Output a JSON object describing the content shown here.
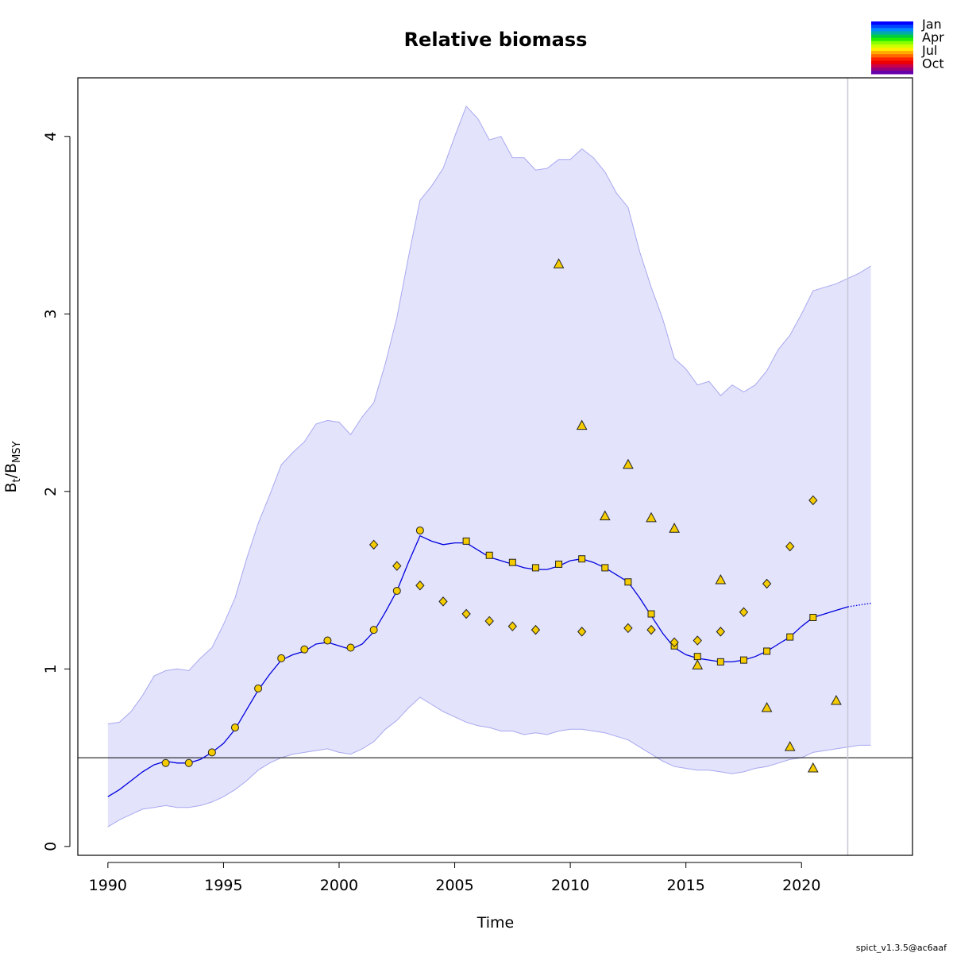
{
  "chart_data": {
    "type": "line",
    "title": "Relative biomass",
    "xlabel": "Time",
    "ylabel_main": "B",
    "ylabel_sub1": "t",
    "ylabel_sep": "/B",
    "ylabel_sub2": "MSY",
    "xlim": [
      1988.7,
      2024.8
    ],
    "ylim": [
      -0.05,
      4.33
    ],
    "x_ticks": [
      1990,
      1995,
      2000,
      2005,
      2010,
      2015,
      2020
    ],
    "y_ticks": [
      0,
      1,
      2,
      3,
      4
    ],
    "reference_line_y": 0.5,
    "vertical_line_x": 2022,
    "legend": {
      "placement": "top-right",
      "labels": [
        "Jan",
        "Apr",
        "Jul",
        "Oct"
      ],
      "colors": [
        "#0000ff",
        "#0044ff",
        "#0088ff",
        "#00aaaa",
        "#00cc44",
        "#22ee00",
        "#88ff00",
        "#ccff00",
        "#ffee00",
        "#ffaa00",
        "#ff6600",
        "#ff2200",
        "#ee0000",
        "#cc0044",
        "#990077",
        "#6600aa"
      ]
    },
    "colors": {
      "band": "#e3e3fc",
      "band_edge": "#a8a8f0",
      "line": "#0000dd",
      "point_fill": "#f5cc00",
      "point_stroke": "#222222",
      "reference": "#000000",
      "vline": "#c8c8d6"
    },
    "series": [
      {
        "kind": "band-upper",
        "x": [
          1990,
          1990.5,
          1991,
          1991.5,
          1992,
          1992.5,
          1993,
          1993.5,
          1994,
          1994.5,
          1995,
          1995.5,
          1996,
          1996.5,
          1997,
          1997.5,
          1998,
          1998.5,
          1999,
          1999.5,
          2000,
          2000.5,
          2001,
          2001.5,
          2002,
          2002.5,
          2003,
          2003.5,
          2004,
          2004.5,
          2005,
          2005.5,
          2006,
          2006.5,
          2007,
          2007.5,
          2008,
          2008.5,
          2009,
          2009.5,
          2010,
          2010.5,
          2011,
          2011.5,
          2012,
          2012.5,
          2013,
          2013.5,
          2014,
          2014.5,
          2015,
          2015.5,
          2016,
          2016.5,
          2017,
          2017.5,
          2018,
          2018.5,
          2019,
          2019.5,
          2020,
          2020.5,
          2021,
          2021.5,
          2022,
          2022.5,
          2023
        ],
        "values": [
          0.69,
          0.7,
          0.76,
          0.85,
          0.96,
          0.99,
          1.0,
          0.99,
          1.06,
          1.12,
          1.25,
          1.4,
          1.62,
          1.82,
          1.98,
          2.15,
          2.22,
          2.28,
          2.38,
          2.4,
          2.39,
          2.32,
          2.42,
          2.5,
          2.72,
          2.98,
          3.32,
          3.64,
          3.72,
          3.82,
          4.0,
          4.17,
          4.1,
          3.98,
          4.0,
          3.88,
          3.88,
          3.81,
          3.82,
          3.87,
          3.87,
          3.93,
          3.88,
          3.8,
          3.68,
          3.6,
          3.35,
          3.15,
          2.97,
          2.75,
          2.69,
          2.6,
          2.62,
          2.54,
          2.6,
          2.56,
          2.6,
          2.68,
          2.8,
          2.88,
          3.0,
          3.13,
          3.15,
          3.17,
          3.2,
          3.23,
          3.27
        ]
      },
      {
        "kind": "band-lower",
        "x": [
          1990,
          1990.5,
          1991,
          1991.5,
          1992,
          1992.5,
          1993,
          1993.5,
          1994,
          1994.5,
          1995,
          1995.5,
          1996,
          1996.5,
          1997,
          1997.5,
          1998,
          1998.5,
          1999,
          1999.5,
          2000,
          2000.5,
          2001,
          2001.5,
          2002,
          2002.5,
          2003,
          2003.5,
          2004,
          2004.5,
          2005,
          2005.5,
          2006,
          2006.5,
          2007,
          2007.5,
          2008,
          2008.5,
          2009,
          2009.5,
          2010,
          2010.5,
          2011,
          2011.5,
          2012,
          2012.5,
          2013,
          2013.5,
          2014,
          2014.5,
          2015,
          2015.5,
          2016,
          2016.5,
          2017,
          2017.5,
          2018,
          2018.5,
          2019,
          2019.5,
          2020,
          2020.5,
          2021,
          2021.5,
          2022,
          2022.5,
          2023
        ],
        "values": [
          0.11,
          0.15,
          0.18,
          0.21,
          0.22,
          0.23,
          0.22,
          0.22,
          0.23,
          0.25,
          0.28,
          0.32,
          0.37,
          0.43,
          0.47,
          0.5,
          0.52,
          0.53,
          0.54,
          0.55,
          0.53,
          0.52,
          0.55,
          0.59,
          0.66,
          0.71,
          0.78,
          0.84,
          0.8,
          0.76,
          0.73,
          0.7,
          0.68,
          0.67,
          0.65,
          0.65,
          0.63,
          0.64,
          0.63,
          0.65,
          0.66,
          0.66,
          0.65,
          0.64,
          0.62,
          0.6,
          0.56,
          0.52,
          0.48,
          0.45,
          0.44,
          0.43,
          0.43,
          0.42,
          0.41,
          0.42,
          0.44,
          0.45,
          0.47,
          0.49,
          0.5,
          0.53,
          0.54,
          0.55,
          0.56,
          0.57,
          0.57
        ]
      },
      {
        "kind": "estimate",
        "x": [
          1990,
          1990.5,
          1991,
          1991.5,
          1992,
          1992.5,
          1993,
          1993.5,
          1994,
          1994.5,
          1995,
          1995.5,
          1996,
          1996.5,
          1997,
          1997.5,
          1998,
          1998.5,
          1999,
          1999.5,
          2000,
          2000.5,
          2001,
          2001.5,
          2002,
          2002.5,
          2003,
          2003.5,
          2004,
          2004.5,
          2005,
          2005.5,
          2006,
          2006.5,
          2007,
          2007.5,
          2008,
          2008.5,
          2009,
          2009.5,
          2010,
          2010.5,
          2011,
          2011.5,
          2012,
          2012.5,
          2013,
          2013.5,
          2014,
          2014.5,
          2015,
          2015.5,
          2016,
          2016.5,
          2017,
          2017.5,
          2018,
          2018.5,
          2019,
          2019.5,
          2020,
          2020.5,
          2021,
          2021.5,
          2022
        ],
        "values": [
          0.28,
          0.32,
          0.37,
          0.42,
          0.46,
          0.48,
          0.47,
          0.47,
          0.49,
          0.53,
          0.58,
          0.66,
          0.77,
          0.88,
          0.97,
          1.05,
          1.08,
          1.1,
          1.14,
          1.15,
          1.13,
          1.11,
          1.14,
          1.21,
          1.32,
          1.44,
          1.6,
          1.75,
          1.72,
          1.7,
          1.71,
          1.71,
          1.67,
          1.63,
          1.61,
          1.59,
          1.57,
          1.56,
          1.56,
          1.58,
          1.61,
          1.62,
          1.6,
          1.57,
          1.53,
          1.49,
          1.4,
          1.3,
          1.2,
          1.12,
          1.08,
          1.06,
          1.05,
          1.04,
          1.04,
          1.05,
          1.07,
          1.1,
          1.14,
          1.18,
          1.24,
          1.29,
          1.31,
          1.33,
          1.35
        ]
      },
      {
        "kind": "forecast",
        "x": [
          2022,
          2022.5,
          2023
        ],
        "values": [
          1.35,
          1.36,
          1.37
        ]
      },
      {
        "kind": "index",
        "marker": "circle",
        "x": [
          1992.5,
          1993.5,
          1994.5,
          1995.5,
          1996.5,
          1997.5,
          1998.5,
          1999.5,
          2000.5,
          2001.5,
          2002.5,
          2003.5
        ],
        "values": [
          0.47,
          0.47,
          0.53,
          0.67,
          0.89,
          1.06,
          1.11,
          1.16,
          1.12,
          1.22,
          1.44,
          1.78
        ]
      },
      {
        "kind": "index",
        "marker": "square",
        "x": [
          2005.5,
          2006.5,
          2007.5,
          2008.5,
          2009.5,
          2010.5,
          2011.5,
          2012.5,
          2013.5,
          2014.5,
          2015.5,
          2016.5,
          2017.5,
          2018.5,
          2019.5,
          2020.5
        ],
        "values": [
          1.72,
          1.64,
          1.6,
          1.57,
          1.59,
          1.62,
          1.57,
          1.49,
          1.31,
          1.13,
          1.07,
          1.04,
          1.05,
          1.1,
          1.18,
          1.29
        ]
      },
      {
        "kind": "index",
        "marker": "diamond",
        "x": [
          2001.5,
          2002.5,
          2003.5,
          2004.5,
          2005.5,
          2006.5,
          2007.5,
          2008.5,
          2010.5,
          2012.5,
          2013.5,
          2014.5,
          2015.5,
          2016.5,
          2017.5,
          2018.5,
          2019.5,
          2020.5
        ],
        "values": [
          1.7,
          1.58,
          1.47,
          1.38,
          1.31,
          1.27,
          1.24,
          1.22,
          1.21,
          1.23,
          1.22,
          1.15,
          1.16,
          1.21,
          1.32,
          1.48,
          1.69,
          1.95
        ]
      },
      {
        "kind": "index",
        "marker": "triangle",
        "x": [
          2009.5,
          2010.5,
          2011.5,
          2012.5,
          2013.5,
          2014.5,
          2015.5,
          2016.5,
          2018.5,
          2019.5,
          2020.5,
          2021.5
        ],
        "values": [
          3.28,
          2.37,
          1.86,
          2.15,
          1.85,
          1.79,
          1.02,
          1.5,
          0.78,
          0.56,
          0.44,
          0.82
        ]
      }
    ]
  },
  "footer": "spict_v1.3.5@ac6aaf"
}
